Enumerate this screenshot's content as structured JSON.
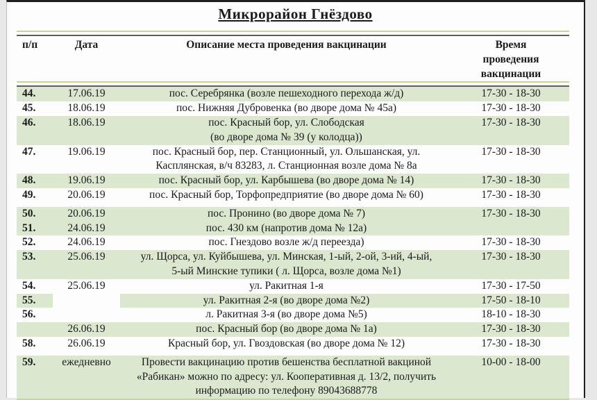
{
  "document": {
    "title": "Микрорайон Гнёздово"
  },
  "colors": {
    "row_highlight_green": "#dbe7cf",
    "rule_green": "#c3d69b",
    "rule_dark": "#5c5c5c",
    "page_background": "#e8e8e8"
  },
  "table": {
    "headers": {
      "num": "п/п",
      "date": "Дата",
      "description": "Описание места проведения вакцинации",
      "time": "Время\nпроведения\nвакцинации"
    },
    "rows": [
      {
        "num": "44.",
        "date": "17.06.19",
        "description": "пос. Серебрянка (возле пешеходного перехода ж/д)",
        "time": "17-30 - 18-30"
      },
      {
        "num": "45.",
        "date": "18.06.19",
        "description": "пос. Нижняя Дубровенка (во дворе дома № 45а)",
        "time": "17-30 - 18-30"
      },
      {
        "num": "46.",
        "date": "18.06.19",
        "description": "пос. Красный бор, ул. Слободская\n(во дворе дома № 39 (у колодца))",
        "time": "17-30 - 18-30"
      },
      {
        "num": "47.",
        "date": "19.06.19",
        "description": "пос. Красный бор, пер. Станционный, ул. Ольшанская, ул.\nКасплянская, в/ч 83283, л. Станционная возле дома № 8а",
        "time": "17-30 - 18-30"
      },
      {
        "num": "48.",
        "date": "19.06.19",
        "description": "пос. Красный бор, ул. Карбышева (во дворе дома № 14)",
        "time": "17-30 - 18-30"
      },
      {
        "num": "49.",
        "date": "20.06.19",
        "description": "пос. Красный бор, Торфопредприятие (во дворе дома № 60)",
        "time": "17-30 - 18-30"
      },
      {
        "num": "50.",
        "date": "20.06.19",
        "description": "пос. Пронино (во дворе дома № 7)",
        "time": "17-30 - 18-30"
      },
      {
        "num": "51.",
        "date": "24.06.19",
        "description": "пос. 430 км (напротив дома № 12а)",
        "time": ""
      },
      {
        "num": "52.",
        "date": "24.06.19",
        "description": "пос. Гнездово возле ж/д переезда)",
        "time": "17-30 - 18-30"
      },
      {
        "num": "53.",
        "date": "25.06.19",
        "description": "ул. Щорса, ул. Куйбышева, ул. Минская, 1-ый, 2-ой, 3-ий, 4-ый,\n5-ый Минские тупики ( л. Щорса, возле дома №1)",
        "time": "17-30 - 18-30"
      },
      {
        "num": "54.",
        "date": "25.06.19",
        "description": "ул. Ракитная 1-я",
        "time": "17-30 - 17-50"
      },
      {
        "num": "55.",
        "date": "",
        "description": "ул. Ракитная 2-я (во дворе дома №2)",
        "time": "17-50 - 18-10"
      },
      {
        "num": "56.",
        "date": "",
        "description": "л. Ракитная 3-я (во дворе дома №5)",
        "time": "18-10 - 18-30"
      },
      {
        "num": "",
        "date": "26.06.19",
        "description": "пос. Красный бор (во дворе дома № 1а)",
        "time": "17-30 - 18-30"
      },
      {
        "num": "58.",
        "date": "26.06.19",
        "description": "Красный бор, ул. Гвоздовская (во дворе дома № 12)",
        "time": "17-30 - 18-30"
      },
      {
        "num": "59.",
        "date": "ежедневно",
        "description": "Провести вакцинацию против бешенства бесплатной вакциной\n«Рабикан» можно по адресу: ул. Кооперативная д. 13/2, получить\nинформацию по телефону 89043688778",
        "time": "10-00 - 18-00"
      }
    ]
  }
}
